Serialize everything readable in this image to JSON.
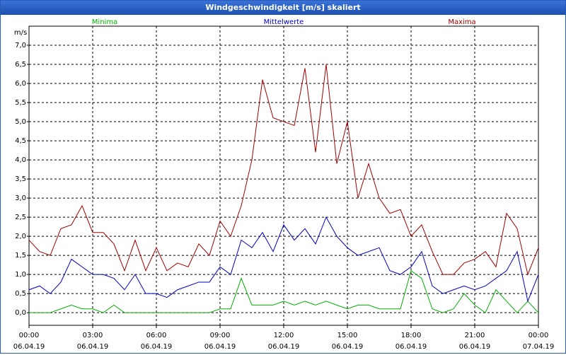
{
  "chart_data": {
    "type": "line",
    "title": "Windgeschwindigkeit [m/s] skaliert",
    "y_label": "m/s",
    "x": [
      0,
      0.5,
      1,
      1.5,
      2,
      2.5,
      3,
      3.5,
      4,
      4.5,
      5,
      5.5,
      6,
      6.5,
      7,
      7.5,
      8,
      8.5,
      9,
      9.5,
      10,
      10.5,
      11,
      11.5,
      12,
      12.5,
      13,
      13.5,
      14,
      14.5,
      15,
      15.5,
      16,
      16.5,
      17,
      17.5,
      18,
      18.5,
      19,
      19.5,
      20,
      20.5,
      21,
      21.5,
      22,
      22.5,
      23,
      23.5,
      24
    ],
    "series": [
      {
        "name": "Minima",
        "color": "#00b000",
        "values": [
          0,
          0,
          0,
          0.1,
          0.2,
          0.1,
          0.1,
          0,
          0.2,
          0,
          0,
          0,
          0,
          0,
          0,
          0,
          0,
          0,
          0.1,
          0.1,
          0.9,
          0.2,
          0.2,
          0.2,
          0.3,
          0.2,
          0.3,
          0.2,
          0.3,
          0.2,
          0.1,
          0.2,
          0.2,
          0.1,
          0.1,
          0.1,
          1.1,
          0.9,
          0.1,
          0,
          0.1,
          0.5,
          0.2,
          0,
          0.6,
          0.3,
          0,
          0.3,
          0
        ]
      },
      {
        "name": "Mittelwerte",
        "color": "#0000c0",
        "values": [
          0.6,
          0.7,
          0.5,
          0.8,
          1.4,
          1.2,
          1.0,
          1.0,
          0.9,
          0.6,
          1.0,
          0.5,
          0.5,
          0.4,
          0.6,
          0.7,
          0.8,
          0.8,
          1.2,
          1.0,
          1.9,
          1.7,
          2.1,
          1.6,
          2.3,
          1.9,
          2.2,
          1.8,
          2.5,
          2.0,
          1.7,
          1.5,
          1.6,
          1.7,
          1.1,
          1.0,
          1.2,
          1.6,
          0.7,
          0.5,
          0.6,
          0.7,
          0.6,
          0.7,
          0.9,
          1.1,
          1.6,
          0.3,
          1.0
        ]
      },
      {
        "name": "Maxima",
        "color": "#a00000",
        "values": [
          1.9,
          1.6,
          1.5,
          2.2,
          2.3,
          2.8,
          2.1,
          2.1,
          1.8,
          1.1,
          1.9,
          1.1,
          1.7,
          1.1,
          1.3,
          1.2,
          1.8,
          1.5,
          2.4,
          2.0,
          2.8,
          4.0,
          6.1,
          5.1,
          5.0,
          4.9,
          6.4,
          4.2,
          6.5,
          3.9,
          5.0,
          3.0,
          3.9,
          3.0,
          2.6,
          2.7,
          2.0,
          2.3,
          1.6,
          1.0,
          1.0,
          1.3,
          1.4,
          1.6,
          1.2,
          2.6,
          2.2,
          1.0,
          1.7
        ]
      }
    ],
    "xlim": [
      0,
      24
    ],
    "ylim": [
      -0.33,
      7.5
    ],
    "xticks": [
      {
        "value": 0,
        "label": "00:00",
        "date": "06.04.19"
      },
      {
        "value": 3,
        "label": "03:00",
        "date": "06.04.19"
      },
      {
        "value": 6,
        "label": "06:00",
        "date": "06.04.19"
      },
      {
        "value": 9,
        "label": "09:00",
        "date": "06.04.19"
      },
      {
        "value": 12,
        "label": "12:00",
        "date": "06.04.19"
      },
      {
        "value": 15,
        "label": "15:00",
        "date": "06.04.19"
      },
      {
        "value": 18,
        "label": "18:00",
        "date": "06.04.19"
      },
      {
        "value": 21,
        "label": "21:00",
        "date": "06.04.19"
      },
      {
        "value": 24,
        "label": "00:00",
        "date": "07.04.19"
      }
    ],
    "yticks": [
      {
        "value": 0,
        "label": "0,0"
      },
      {
        "value": 0.5,
        "label": "0,5"
      },
      {
        "value": 1,
        "label": "1,0"
      },
      {
        "value": 1.5,
        "label": "1,5"
      },
      {
        "value": 2,
        "label": "2,0"
      },
      {
        "value": 2.5,
        "label": "2,5"
      },
      {
        "value": 3,
        "label": "3,0"
      },
      {
        "value": 3.5,
        "label": "3,5"
      },
      {
        "value": 4,
        "label": "4,0"
      },
      {
        "value": 4.5,
        "label": "4,5"
      },
      {
        "value": 5,
        "label": "5,0"
      },
      {
        "value": 5.5,
        "label": "5,5"
      },
      {
        "value": 6,
        "label": "6,0"
      },
      {
        "value": 6.5,
        "label": "6,5"
      },
      {
        "value": 7,
        "label": "7,0"
      }
    ],
    "grid": true
  }
}
